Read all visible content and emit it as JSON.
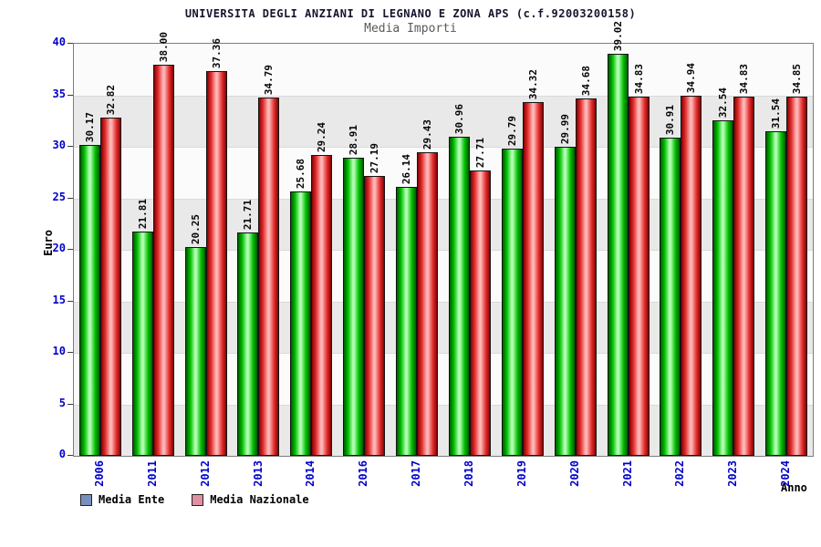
{
  "title": "UNIVERSITA DEGLI ANZIANI DI LEGNANO E ZONA APS (c.f.92003200158)",
  "subtitle": "Media Importi",
  "chart_data": {
    "type": "bar",
    "categories": [
      "2006",
      "2011",
      "2012",
      "2013",
      "2014",
      "2016",
      "2017",
      "2018",
      "2019",
      "2020",
      "2021",
      "2022",
      "2023",
      "2024"
    ],
    "series": [
      {
        "name": "Media Ente",
        "values": [
          30.17,
          21.81,
          20.25,
          21.71,
          25.68,
          28.91,
          26.14,
          30.96,
          29.79,
          29.99,
          39.02,
          30.91,
          32.54,
          31.54
        ],
        "gradient": [
          "#005a00",
          "#00c000",
          "#b2ffb2"
        ]
      },
      {
        "name": "Media Nazionale",
        "values": [
          32.82,
          38.0,
          37.36,
          34.79,
          29.24,
          27.19,
          29.43,
          27.71,
          34.32,
          34.68,
          34.83,
          34.94,
          34.83,
          34.85
        ],
        "gradient": [
          "#870000",
          "#e43030",
          "#ffb8b8"
        ]
      }
    ],
    "title": "Media Importi",
    "xlabel": "Anno",
    "ylabel": "Euro",
    "ylim": [
      0,
      40
    ],
    "yticks": [
      0,
      5,
      10,
      15,
      20,
      25,
      30,
      35,
      40
    ],
    "grid": "alternating-bands",
    "legend_position": "bottom-left",
    "legend": [
      {
        "label": "Media Ente",
        "swatch": "#7890c0"
      },
      {
        "label": "Media Nazionale",
        "swatch": "#e090a0"
      }
    ],
    "colors": {
      "axis_tick_labels": "#0202c8",
      "value_labels": "#060606",
      "title": "#15152e",
      "subtitle": "#5a5a5a"
    }
  }
}
